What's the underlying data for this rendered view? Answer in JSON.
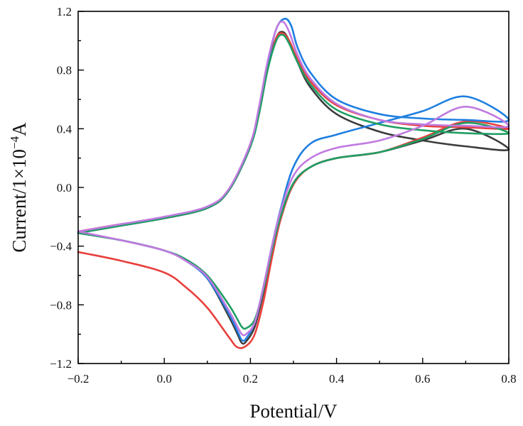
{
  "chart_data": {
    "type": "line",
    "xlabel": "Potential/V",
    "ylabel": {
      "base": "Current/1×10",
      "exponent": "−4",
      "unit": "A"
    },
    "xlim": [
      -0.2,
      0.8
    ],
    "ylim": [
      -1.2,
      1.2
    ],
    "x_ticks": [
      -0.2,
      0.0,
      0.2,
      0.4,
      0.6,
      0.8
    ],
    "x_tick_labels": [
      "−0.2",
      "0.0",
      "0.2",
      "0.4",
      "0.6",
      "0.8"
    ],
    "y_ticks": [
      -1.2,
      -0.8,
      -0.4,
      0.0,
      0.4,
      0.8,
      1.2
    ],
    "y_tick_labels": [
      "−1.2",
      "−0.8",
      "−0.4",
      "0.0",
      "0.4",
      "0.8",
      "1.2"
    ],
    "grid": false,
    "series": [
      {
        "color": "#3c3c3c",
        "x": [
          -0.2,
          -0.1,
          0.0,
          0.1,
          0.15,
          0.2,
          0.22,
          0.24,
          0.26,
          0.275,
          0.29,
          0.31,
          0.34,
          0.4,
          0.5,
          0.6,
          0.7,
          0.8,
          0.7,
          0.6,
          0.5,
          0.4,
          0.34,
          0.3,
          0.27,
          0.25,
          0.23,
          0.21,
          0.19,
          0.18,
          0.17,
          0.15,
          0.1,
          0.05,
          0.0,
          -0.1,
          -0.2
        ],
        "y": [
          -0.31,
          -0.26,
          -0.21,
          -0.14,
          -0.02,
          0.28,
          0.52,
          0.82,
          1.02,
          1.06,
          1.0,
          0.85,
          0.68,
          0.5,
          0.38,
          0.32,
          0.28,
          0.26,
          0.4,
          0.32,
          0.24,
          0.2,
          0.14,
          0.03,
          -0.2,
          -0.44,
          -0.72,
          -0.95,
          -1.05,
          -1.06,
          -1.0,
          -0.88,
          -0.62,
          -0.5,
          -0.43,
          -0.36,
          -0.31
        ]
      },
      {
        "color": "#e8403c",
        "x": [
          -0.2,
          -0.1,
          0.0,
          0.1,
          0.15,
          0.2,
          0.22,
          0.24,
          0.26,
          0.275,
          0.29,
          0.31,
          0.34,
          0.4,
          0.5,
          0.6,
          0.7,
          0.8,
          0.7,
          0.6,
          0.5,
          0.4,
          0.34,
          0.3,
          0.27,
          0.25,
          0.23,
          0.21,
          0.19,
          0.17,
          0.15,
          0.1,
          0.05,
          0.0,
          -0.1,
          -0.2
        ],
        "y": [
          -0.3,
          -0.25,
          -0.21,
          -0.14,
          -0.02,
          0.28,
          0.52,
          0.82,
          1.02,
          1.05,
          1.0,
          0.87,
          0.72,
          0.56,
          0.46,
          0.42,
          0.41,
          0.4,
          0.45,
          0.34,
          0.24,
          0.2,
          0.14,
          0.02,
          -0.22,
          -0.48,
          -0.78,
          -1.0,
          -1.08,
          -1.09,
          -1.02,
          -0.82,
          -0.68,
          -0.58,
          -0.5,
          -0.44
        ]
      },
      {
        "color": "#1e7ee0",
        "x": [
          -0.2,
          -0.1,
          0.0,
          0.1,
          0.15,
          0.2,
          0.22,
          0.24,
          0.26,
          0.28,
          0.295,
          0.31,
          0.34,
          0.4,
          0.5,
          0.6,
          0.7,
          0.8,
          0.7,
          0.6,
          0.5,
          0.4,
          0.34,
          0.3,
          0.27,
          0.25,
          0.23,
          0.21,
          0.19,
          0.18,
          0.17,
          0.15,
          0.1,
          0.05,
          0.0,
          -0.1,
          -0.2
        ],
        "y": [
          -0.31,
          -0.26,
          -0.21,
          -0.14,
          -0.02,
          0.28,
          0.52,
          0.84,
          1.08,
          1.15,
          1.1,
          0.95,
          0.78,
          0.6,
          0.5,
          0.47,
          0.46,
          0.46,
          0.62,
          0.52,
          0.44,
          0.36,
          0.3,
          0.14,
          -0.15,
          -0.4,
          -0.68,
          -0.92,
          -1.03,
          -1.04,
          -0.98,
          -0.86,
          -0.62,
          -0.5,
          -0.43,
          -0.36,
          -0.31
        ]
      },
      {
        "color": "#1f9e63",
        "x": [
          -0.2,
          -0.1,
          0.0,
          0.1,
          0.15,
          0.2,
          0.22,
          0.24,
          0.26,
          0.275,
          0.29,
          0.31,
          0.34,
          0.4,
          0.5,
          0.6,
          0.7,
          0.8,
          0.7,
          0.6,
          0.5,
          0.4,
          0.34,
          0.3,
          0.27,
          0.25,
          0.23,
          0.21,
          0.19,
          0.18,
          0.17,
          0.15,
          0.1,
          0.05,
          0.0,
          -0.1,
          -0.2
        ],
        "y": [
          -0.31,
          -0.26,
          -0.21,
          -0.14,
          -0.02,
          0.28,
          0.5,
          0.8,
          1.0,
          1.04,
          0.98,
          0.85,
          0.7,
          0.53,
          0.43,
          0.39,
          0.37,
          0.37,
          0.44,
          0.33,
          0.24,
          0.2,
          0.14,
          0.03,
          -0.2,
          -0.43,
          -0.7,
          -0.9,
          -0.96,
          -0.95,
          -0.9,
          -0.8,
          -0.6,
          -0.49,
          -0.43,
          -0.36,
          -0.31
        ]
      },
      {
        "color": "#c07ae0",
        "x": [
          -0.2,
          -0.1,
          0.0,
          0.1,
          0.15,
          0.2,
          0.22,
          0.24,
          0.26,
          0.275,
          0.29,
          0.31,
          0.34,
          0.4,
          0.5,
          0.6,
          0.7,
          0.8,
          0.7,
          0.6,
          0.5,
          0.4,
          0.34,
          0.3,
          0.27,
          0.25,
          0.23,
          0.21,
          0.19,
          0.18,
          0.17,
          0.15,
          0.1,
          0.05,
          0.0,
          -0.1,
          -0.2
        ],
        "y": [
          -0.3,
          -0.25,
          -0.2,
          -0.13,
          -0.01,
          0.3,
          0.55,
          0.86,
          1.08,
          1.13,
          1.06,
          0.9,
          0.74,
          0.57,
          0.46,
          0.43,
          0.42,
          0.42,
          0.55,
          0.42,
          0.32,
          0.27,
          0.2,
          0.08,
          -0.16,
          -0.4,
          -0.68,
          -0.92,
          -1.0,
          -1.0,
          -0.95,
          -0.84,
          -0.61,
          -0.5,
          -0.43,
          -0.36,
          -0.3
        ]
      }
    ]
  }
}
